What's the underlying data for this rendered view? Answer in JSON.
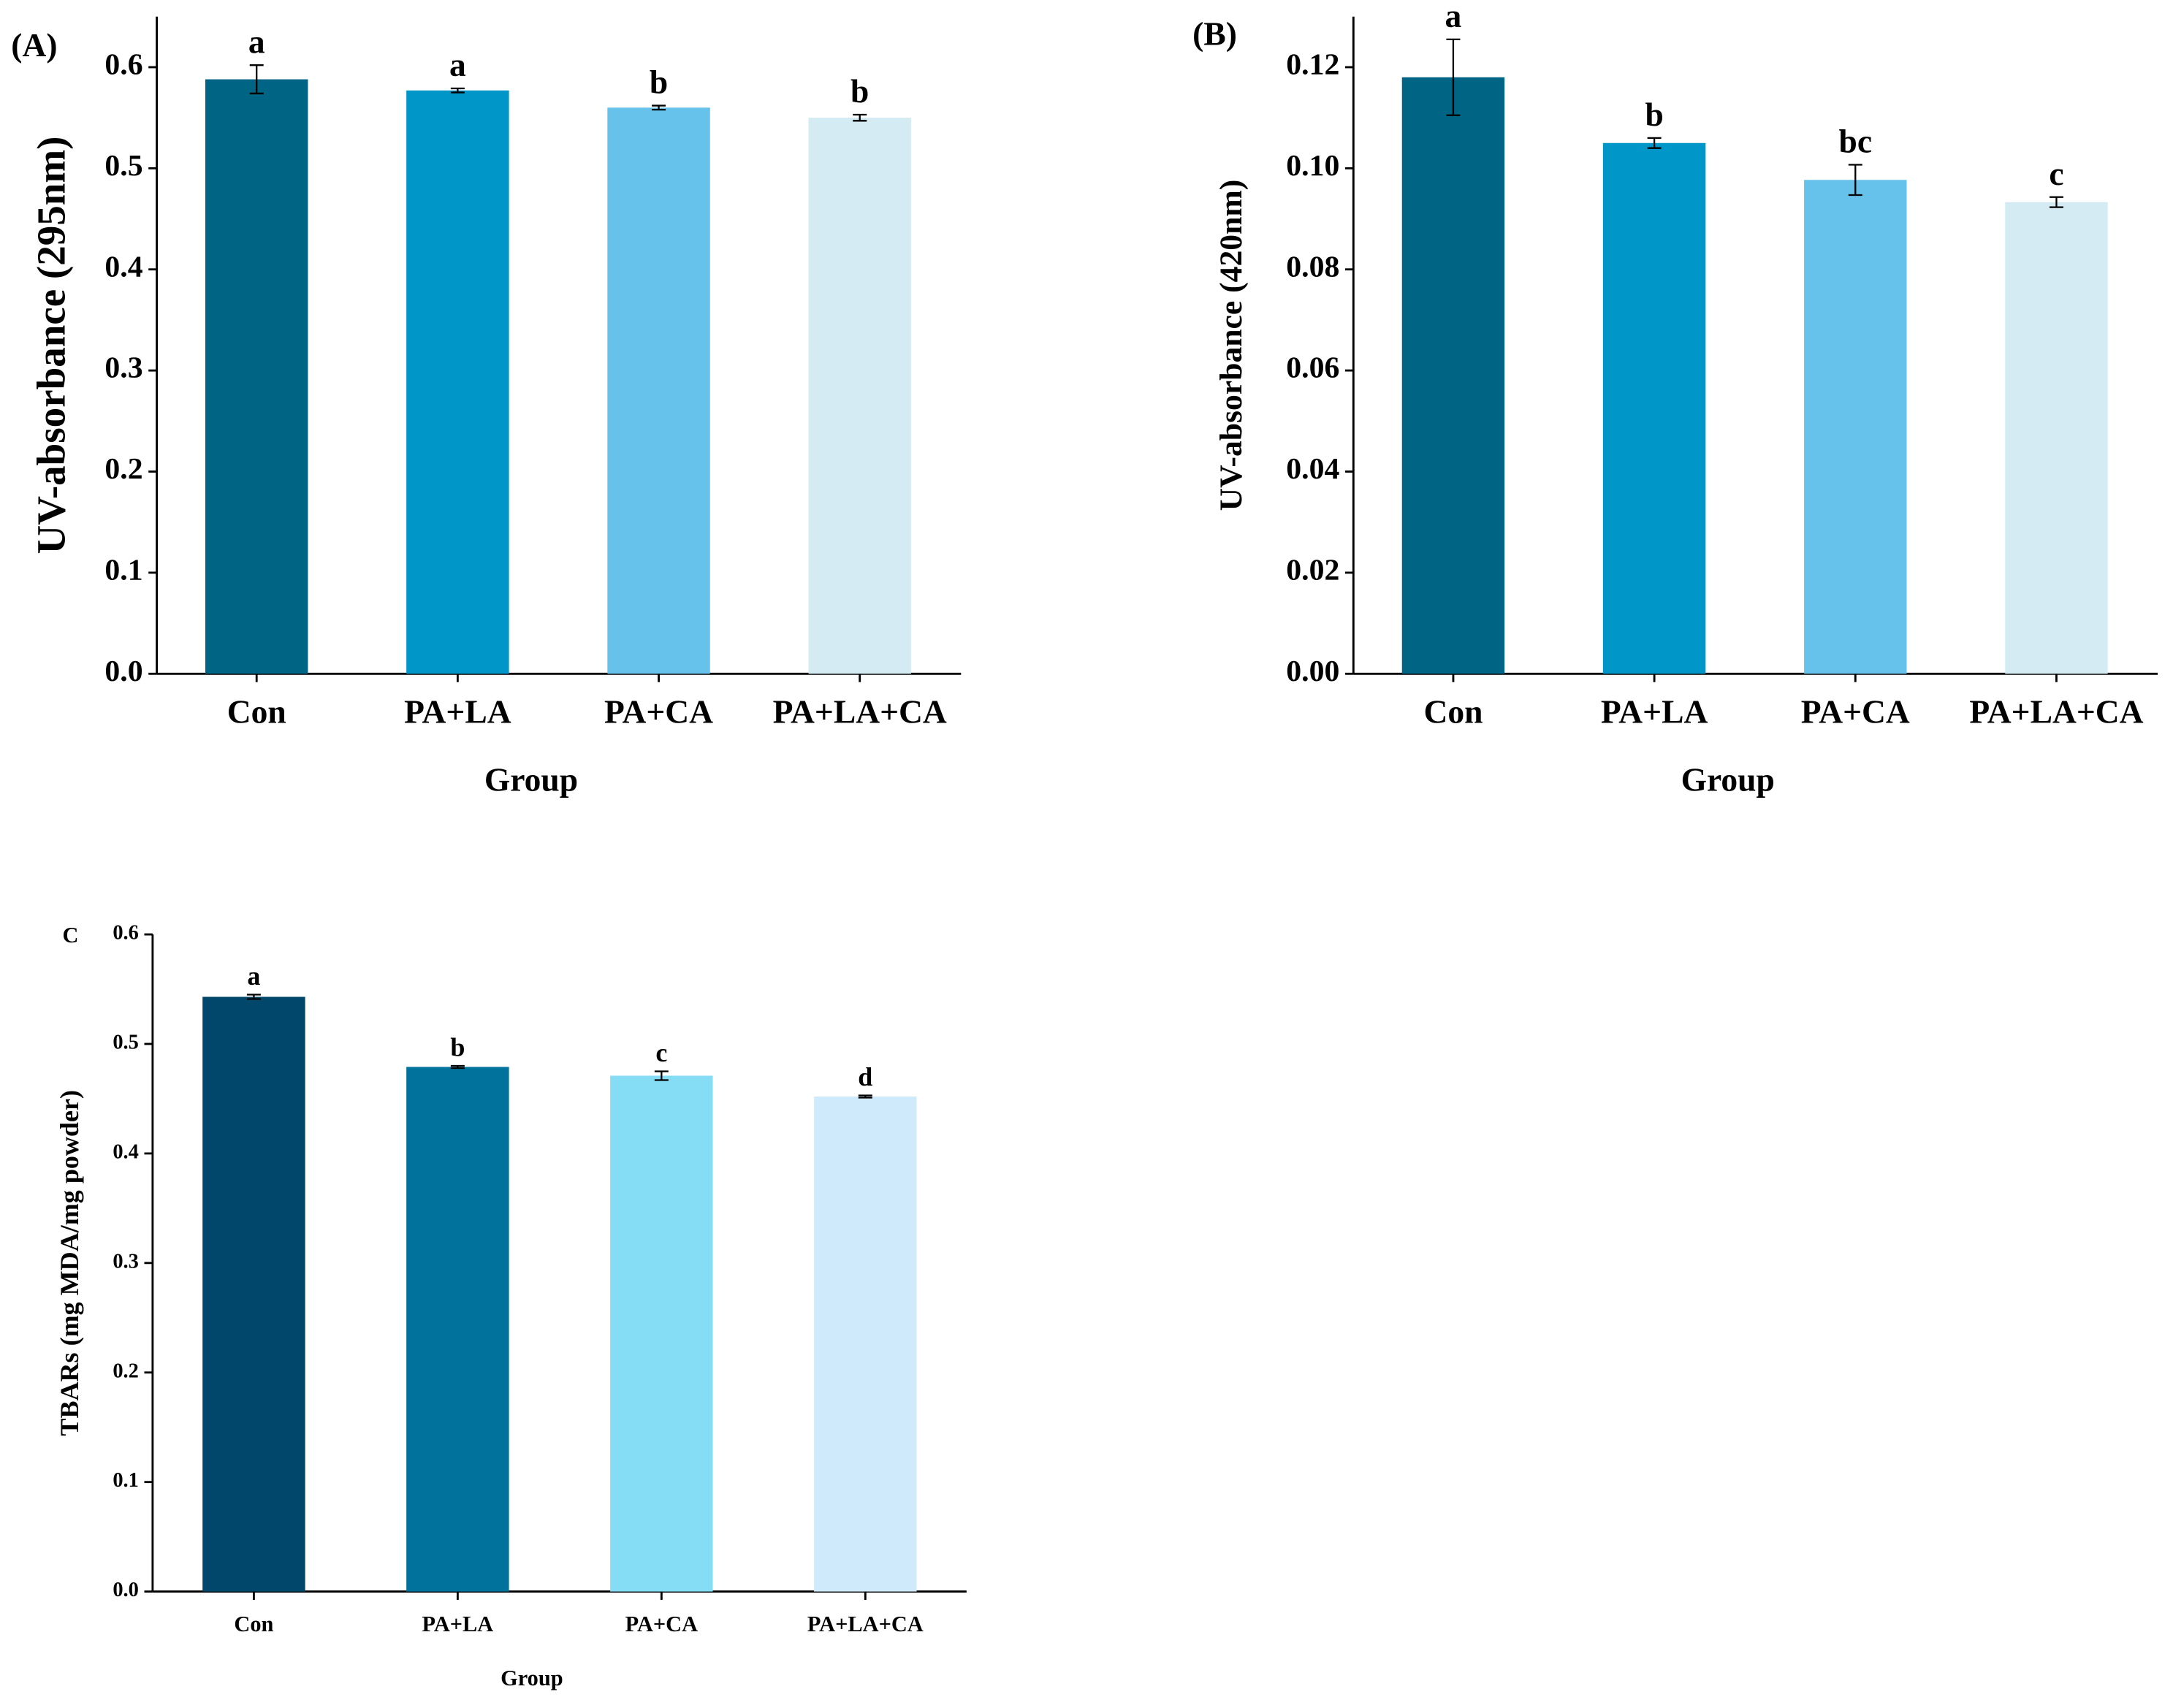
{
  "chart_data": [
    {
      "type": "bar",
      "panel_label": "(A)",
      "ylabel": "UV-absorbance (295nm)",
      "xlabel": "Group",
      "categories": [
        "Con",
        "PA+LA",
        "PA+CA",
        "PA+LA+CA"
      ],
      "values": [
        0.588,
        0.577,
        0.56,
        0.55
      ],
      "errors": [
        0.014,
        0.002,
        0.002,
        0.003
      ],
      "annotations": [
        "a",
        "a",
        "b",
        "b"
      ],
      "colors": [
        "#006485",
        "#0096c7",
        "#66c2ea",
        "#d5ebf3"
      ],
      "ylim": [
        0,
        0.65
      ],
      "yticks": [
        {
          "value": 0,
          "label": "0.0"
        },
        0.1,
        0.2,
        0.3,
        0.4,
        0.5,
        0.6
      ]
    },
    {
      "type": "bar",
      "panel_label": "(B)",
      "ylabel": "UV-absorbance (420nm)",
      "xlabel": "Group",
      "categories": [
        "Con",
        "PA+LA",
        "PA+CA",
        "PA+LA+CA"
      ],
      "values": [
        0.118,
        0.105,
        0.0977,
        0.0933
      ],
      "errors": [
        0.0075,
        0.001,
        0.003,
        0.001
      ],
      "annotations": [
        "a",
        "b",
        "bc",
        "c"
      ],
      "colors": [
        "#006485",
        "#0096c7",
        "#66c2ea",
        "#d5ebf3"
      ],
      "ylim": [
        0,
        0.13
      ],
      "yticks": [
        {
          "value": 0,
          "label": "0.00"
        },
        0.02,
        0.04,
        0.06,
        0.08,
        {
          "value": 0.1,
          "label": "0.10"
        },
        0.12
      ]
    },
    {
      "type": "bar",
      "panel_label": "C",
      "ylabel": "TBARs (mg MDA/mg powder)",
      "xlabel": "Group",
      "categories": [
        "Con",
        "PA+LA",
        "PA+CA",
        "PA+LA+CA"
      ],
      "values": [
        0.543,
        0.479,
        0.471,
        0.452
      ],
      "errors": [
        0.002,
        0.001,
        0.004,
        0.001
      ],
      "annotations": [
        "a",
        "b",
        "c",
        "d"
      ],
      "colors": [
        "#00476b",
        "#00729c",
        "#85dcf5",
        "#cfeafa"
      ],
      "ylim": [
        0,
        0.6
      ],
      "yticks": [
        {
          "value": 0,
          "label": "0.0"
        },
        0.1,
        0.2,
        0.3,
        0.4,
        0.5,
        0.6
      ]
    }
  ]
}
